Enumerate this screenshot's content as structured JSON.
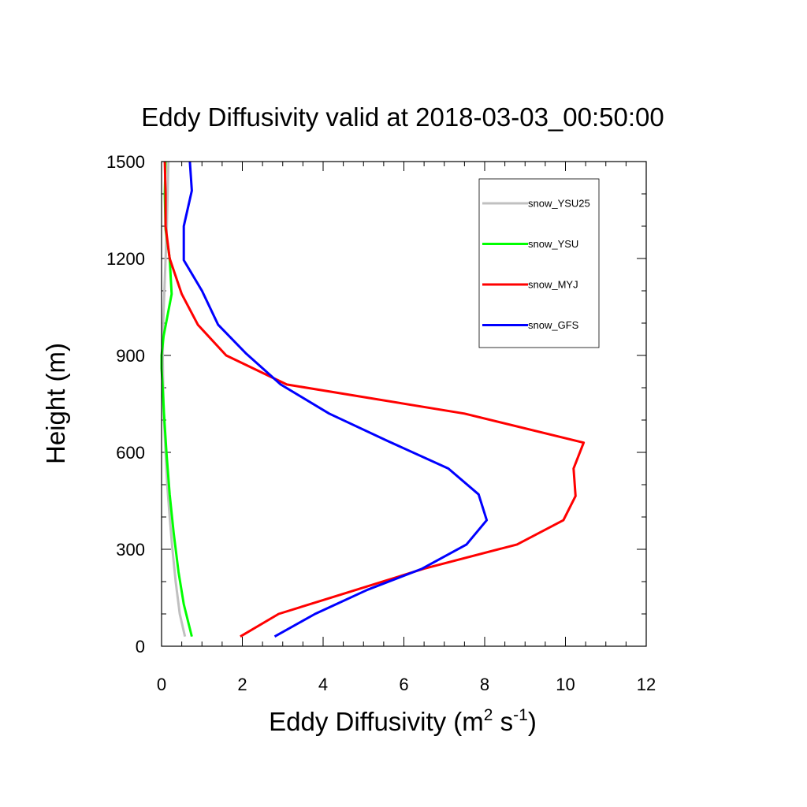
{
  "chart_data": {
    "type": "line",
    "title": "Eddy Diffusivity valid at 2018-03-03_00:50:00",
    "xlabel": {
      "base": "Eddy Diffusivity (m",
      "sup1": "2",
      "mid": " s",
      "sup2": "-1",
      "end": ")"
    },
    "ylabel": "Height (m)",
    "xlim": [
      0,
      12
    ],
    "ylim": [
      0,
      1500
    ],
    "x_ticks": [
      "0",
      "2",
      "4",
      "6",
      "8",
      "10",
      "12"
    ],
    "y_ticks": [
      "0",
      "300",
      "600",
      "900",
      "1200",
      "1500"
    ],
    "grid": false,
    "legend_position": "top-right",
    "series": [
      {
        "name": "snow_YSU25",
        "color": "#c0c0c0",
        "points": [
          [
            0.58,
            30
          ],
          [
            0.45,
            100
          ],
          [
            0.35,
            200
          ],
          [
            0.27,
            300
          ],
          [
            0.2,
            400
          ],
          [
            0.14,
            500
          ],
          [
            0.1,
            600
          ],
          [
            0.06,
            700
          ],
          [
            0.04,
            800
          ],
          [
            0.03,
            900
          ],
          [
            0.04,
            1000
          ],
          [
            0.07,
            1100
          ],
          [
            0.1,
            1200
          ],
          [
            0.13,
            1300
          ],
          [
            0.15,
            1400
          ],
          [
            0.17,
            1500
          ]
        ]
      },
      {
        "name": "snow_YSU",
        "color": "#00ff00",
        "points": [
          [
            0.75,
            30
          ],
          [
            0.55,
            130
          ],
          [
            0.42,
            230
          ],
          [
            0.3,
            350
          ],
          [
            0.2,
            470
          ],
          [
            0.12,
            600
          ],
          [
            0.06,
            720
          ],
          [
            0.02,
            820
          ],
          [
            0.0,
            860
          ],
          [
            0.0,
            900
          ],
          [
            0.05,
            960
          ],
          [
            0.25,
            1090
          ],
          [
            0.2,
            1200
          ],
          [
            0.1,
            1290
          ],
          [
            0.08,
            1400
          ],
          [
            0.1,
            1500
          ]
        ]
      },
      {
        "name": "snow_MYJ",
        "color": "#ff0000",
        "points": [
          [
            1.95,
            30
          ],
          [
            2.9,
            100
          ],
          [
            4.7,
            170
          ],
          [
            6.5,
            240
          ],
          [
            8.8,
            315
          ],
          [
            9.95,
            390
          ],
          [
            10.25,
            465
          ],
          [
            10.2,
            550
          ],
          [
            10.45,
            630
          ],
          [
            7.5,
            720
          ],
          [
            3.1,
            810
          ],
          [
            1.6,
            900
          ],
          [
            0.9,
            995
          ],
          [
            0.5,
            1090
          ],
          [
            0.2,
            1200
          ],
          [
            0.1,
            1300
          ],
          [
            0.1,
            1400
          ],
          [
            0.08,
            1500
          ]
        ]
      },
      {
        "name": "snow_GFS",
        "color": "#0000ff",
        "points": [
          [
            2.8,
            30
          ],
          [
            3.8,
            100
          ],
          [
            5.1,
            175
          ],
          [
            6.45,
            240
          ],
          [
            7.55,
            315
          ],
          [
            8.05,
            390
          ],
          [
            7.85,
            470
          ],
          [
            7.1,
            550
          ],
          [
            5.6,
            635
          ],
          [
            4.15,
            720
          ],
          [
            2.95,
            810
          ],
          [
            2.1,
            905
          ],
          [
            1.4,
            995
          ],
          [
            1.0,
            1100
          ],
          [
            0.55,
            1195
          ],
          [
            0.55,
            1300
          ],
          [
            0.75,
            1410
          ],
          [
            0.7,
            1500
          ]
        ]
      }
    ]
  }
}
